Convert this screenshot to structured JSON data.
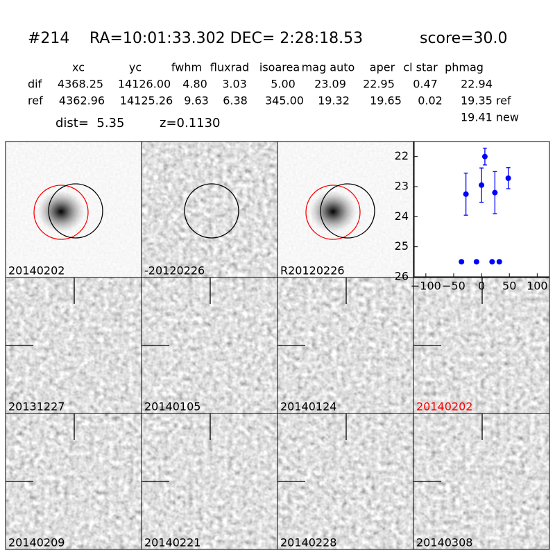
{
  "header": {
    "id": "#214",
    "coords": "RA=10:01:33.302 DEC= 2:28:18.53",
    "score": "score=30.0"
  },
  "table": {
    "columns": [
      "xc",
      "yc",
      "fwhm",
      "fluxrad",
      "isoarea",
      "mag auto",
      "aper",
      "cl star",
      "phmag"
    ],
    "rows": [
      {
        "label": "dif",
        "cells": [
          "4368.25",
          "14126.00",
          "4.80",
          "3.03",
          "5.00",
          "23.09",
          "22.95",
          "0.47",
          "22.94"
        ]
      },
      {
        "label": "ref",
        "cells": [
          "4362.96",
          "14125.26",
          "9.63",
          "6.38",
          "345.00",
          "19.32",
          "19.65",
          "0.02",
          "19.35 ref"
        ]
      }
    ],
    "extra": "19.41 new"
  },
  "dist": "dist=  5.35",
  "redshift": "z=0.1130",
  "stamps": [
    {
      "label": "20140202"
    },
    {
      "label": "-20120226"
    },
    {
      "label": "R20120226"
    },
    {
      "label": "20131227"
    },
    {
      "label": "20140105"
    },
    {
      "label": "20140124"
    },
    {
      "label": "20140202",
      "color": "#ff0000"
    },
    {
      "label": "20140209"
    },
    {
      "label": "20140221"
    },
    {
      "label": "20140228"
    },
    {
      "label": "20140308"
    }
  ],
  "chart_data": {
    "type": "scatter",
    "color": "#0000ff",
    "x": [
      -28,
      0,
      6,
      24,
      48,
      -36,
      -9,
      19,
      32
    ],
    "values": [
      23.25,
      22.95,
      22.0,
      23.2,
      22.72,
      25.5,
      25.5,
      25.5,
      25.5
    ],
    "errors": [
      0.7,
      0.57,
      0.28,
      0.7,
      0.35,
      0.05,
      0.05,
      0.05,
      0.05
    ],
    "xlim": [
      -121,
      122
    ],
    "ylim": [
      26,
      21.5
    ],
    "xticks": [
      {
        "value": -100,
        "label": "−100"
      },
      {
        "value": -50,
        "label": "−50"
      },
      0,
      50,
      100
    ],
    "yticks": [
      22,
      23,
      24,
      25,
      26
    ]
  }
}
